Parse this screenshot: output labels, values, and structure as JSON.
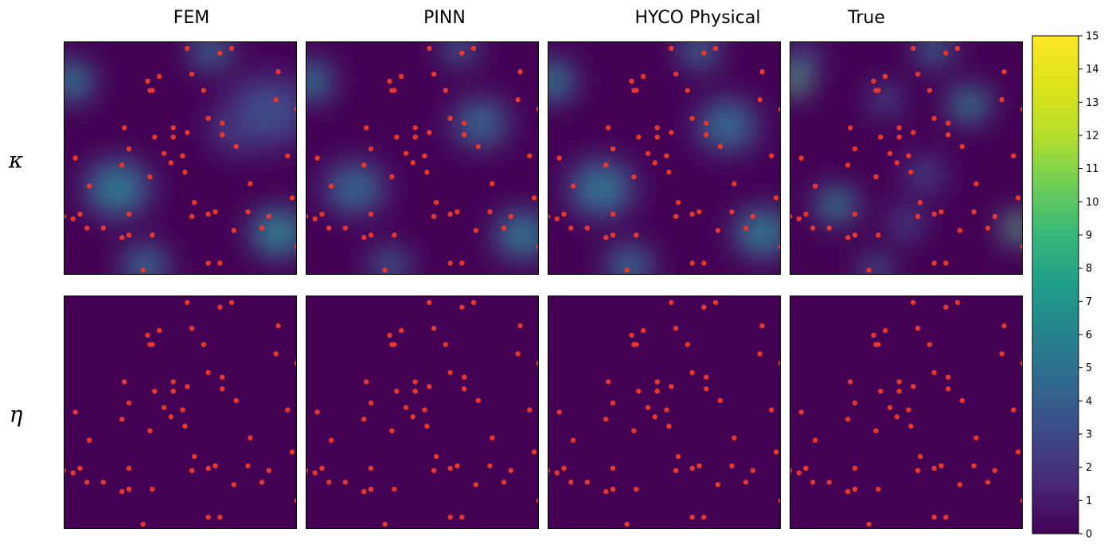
{
  "columns": [
    "FEM",
    "PINN",
    "HYCO Physical",
    "True"
  ],
  "rows": [
    "κ",
    "η"
  ],
  "colorbar": {
    "min": 0,
    "max": 15,
    "ticks": [
      "0",
      "1",
      "2",
      "3",
      "4",
      "5",
      "6",
      "7",
      "8",
      "9",
      "10",
      "11",
      "12",
      "13",
      "14",
      "15"
    ],
    "colormap": "viridis"
  },
  "marker_color": "#e8382c",
  "chart_data": {
    "type": "heatmap",
    "description_fields": "each panel is a field over the unit square; blobs give peak values, markers are sensor locations in data coordinates (0-1)",
    "sensors": [
      [
        0.53,
        0.97
      ],
      [
        0.67,
        0.95
      ],
      [
        0.72,
        0.97
      ],
      [
        0.92,
        0.87
      ],
      [
        0.36,
        0.83
      ],
      [
        0.41,
        0.85
      ],
      [
        0.55,
        0.86
      ],
      [
        0.37,
        0.79
      ],
      [
        0.38,
        0.79
      ],
      [
        0.6,
        0.79
      ],
      [
        0.91,
        0.75
      ],
      [
        1.0,
        0.71
      ],
      [
        0.62,
        0.67
      ],
      [
        0.68,
        0.65
      ],
      [
        0.47,
        0.63
      ],
      [
        0.26,
        0.63
      ],
      [
        0.53,
        0.61
      ],
      [
        0.47,
        0.59
      ],
      [
        0.68,
        0.6
      ],
      [
        0.39,
        0.59
      ],
      [
        0.74,
        0.55
      ],
      [
        0.28,
        0.54
      ],
      [
        0.43,
        0.52
      ],
      [
        0.05,
        0.5
      ],
      [
        0.51,
        0.51
      ],
      [
        0.46,
        0.48
      ],
      [
        0.25,
        0.47
      ],
      [
        0.96,
        0.51
      ],
      [
        0.52,
        0.44
      ],
      [
        0.37,
        0.42
      ],
      [
        0.11,
        0.38
      ],
      [
        0.8,
        0.39
      ],
      [
        0.56,
        0.31
      ],
      [
        0.28,
        0.26
      ],
      [
        0.98,
        0.33
      ],
      [
        0.0,
        0.25
      ],
      [
        0.04,
        0.24
      ],
      [
        0.07,
        0.26
      ],
      [
        0.79,
        0.27
      ],
      [
        0.55,
        0.25
      ],
      [
        0.62,
        0.26
      ],
      [
        0.65,
        0.27
      ],
      [
        0.88,
        0.25
      ],
      [
        0.1,
        0.2
      ],
      [
        0.17,
        0.2
      ],
      [
        0.28,
        0.17
      ],
      [
        0.73,
        0.19
      ],
      [
        0.85,
        0.2
      ],
      [
        0.38,
        0.17
      ],
      [
        0.25,
        0.16
      ],
      [
        0.62,
        0.05
      ],
      [
        1.0,
        0.12
      ],
      [
        0.34,
        0.02
      ],
      [
        0.67,
        0.05
      ]
    ],
    "kappa_blobs": {
      "FEM": [
        [
          0.03,
          0.83,
          8.5,
          0.1
        ],
        [
          0.63,
          0.96,
          7.5,
          0.09
        ],
        [
          0.77,
          0.64,
          8.0,
          0.13
        ],
        [
          0.23,
          0.37,
          8.0,
          0.14
        ],
        [
          0.92,
          0.18,
          9.0,
          0.12
        ],
        [
          0.35,
          0.04,
          7.5,
          0.1
        ],
        [
          0.88,
          0.7,
          4.0,
          0.18
        ]
      ],
      "PINN": [
        [
          0.02,
          0.83,
          8.0,
          0.1
        ],
        [
          0.66,
          0.97,
          6.5,
          0.08
        ],
        [
          0.75,
          0.65,
          6.5,
          0.12
        ],
        [
          0.21,
          0.37,
          6.5,
          0.13
        ],
        [
          0.93,
          0.17,
          8.0,
          0.12
        ],
        [
          0.36,
          0.04,
          6.0,
          0.09
        ]
      ],
      "HYCO Physical": [
        [
          0.02,
          0.83,
          8.5,
          0.1
        ],
        [
          0.65,
          0.96,
          7.0,
          0.09
        ],
        [
          0.77,
          0.64,
          7.0,
          0.13
        ],
        [
          0.23,
          0.37,
          7.5,
          0.14
        ],
        [
          0.92,
          0.18,
          8.5,
          0.12
        ],
        [
          0.35,
          0.04,
          7.5,
          0.1
        ]
      ],
      "True": [
        [
          0.02,
          0.83,
          14.5,
          0.07
        ],
        [
          0.62,
          0.97,
          8.0,
          0.08
        ],
        [
          0.77,
          0.73,
          9.0,
          0.09
        ],
        [
          0.41,
          0.75,
          5.5,
          0.07
        ],
        [
          0.2,
          0.3,
          9.0,
          0.09
        ],
        [
          0.5,
          0.22,
          5.5,
          0.07
        ],
        [
          0.98,
          0.2,
          15.0,
          0.07
        ],
        [
          0.37,
          0.02,
          7.0,
          0.07
        ],
        [
          0.06,
          0.93,
          5.5,
          0.07
        ],
        [
          0.58,
          0.43,
          3.5,
          0.09
        ]
      ]
    },
    "eta_value": 0
  }
}
